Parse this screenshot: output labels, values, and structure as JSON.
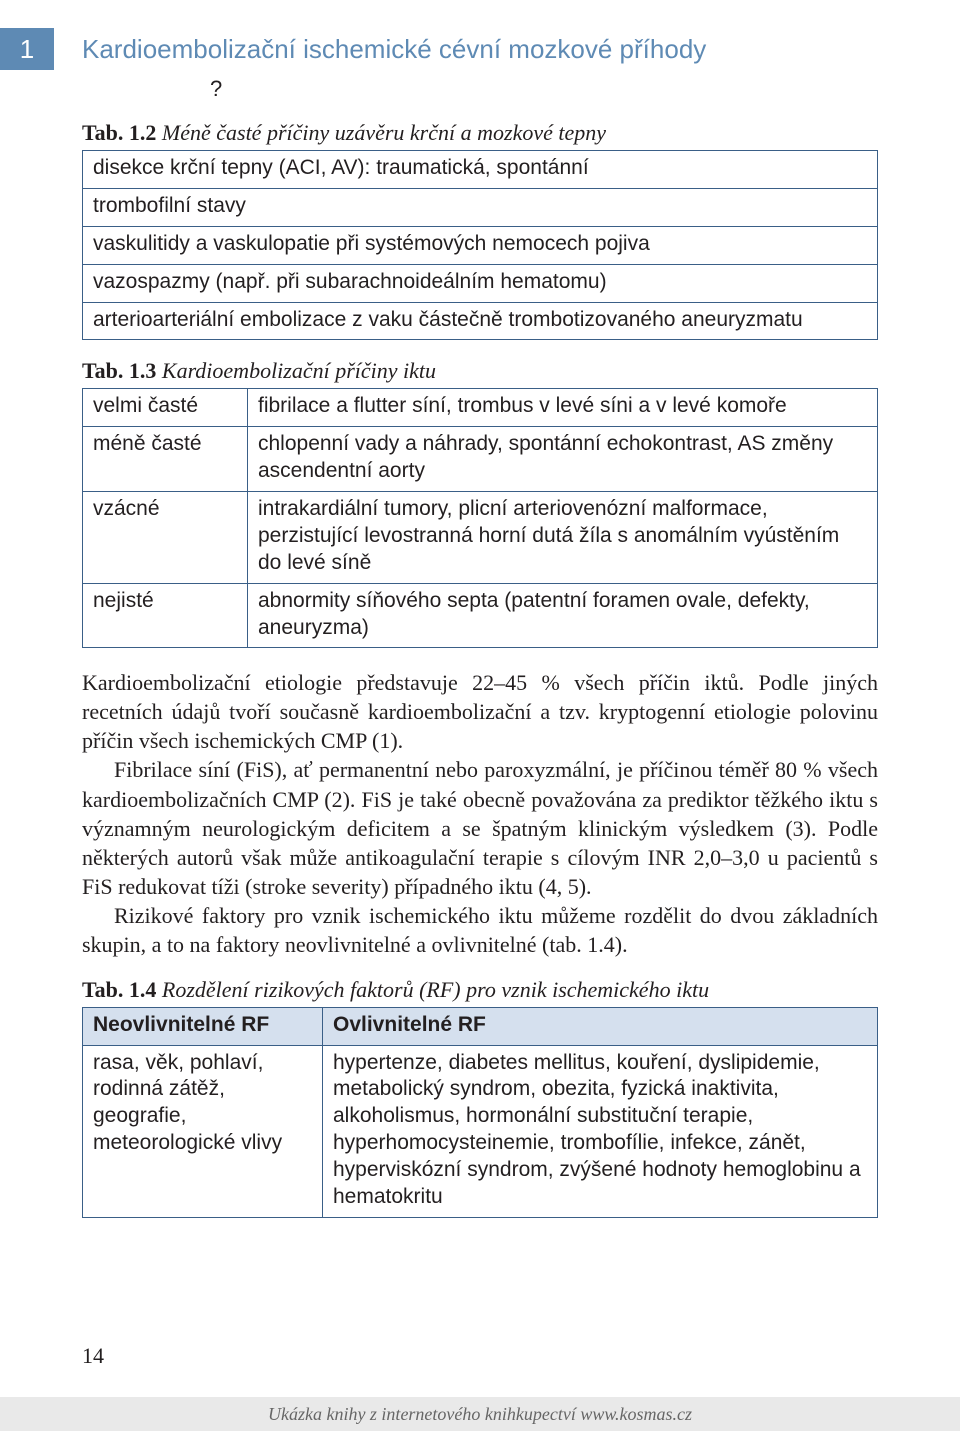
{
  "header": {
    "chapter_number": "1",
    "chapter_title": "Kardioembolizační ischemické cévní mozkové příhody",
    "qmark": "?"
  },
  "table12": {
    "caption_bold": "Tab. 1.2",
    "caption_italic": " Méně časté příčiny uzávěru krční a mozkové tepny",
    "rows": [
      "disekce krční tepny (ACI, AV): traumatická, spontánní",
      "trombofilní stavy",
      "vaskulitidy a vaskulopatie při systémových nemocech pojiva",
      "vazospazmy (např. při subarachnoideálním hematomu)",
      "arterioarteriální embolizace z vaku částečně trombotizovaného aneuryzmatu"
    ]
  },
  "table13": {
    "caption_bold": "Tab. 1.3",
    "caption_italic": " Kardioembolizační příčiny iktu",
    "rows": [
      {
        "left": "velmi časté",
        "right": "fibrilace a flutter síní, trombus v levé síni a v levé komoře"
      },
      {
        "left": "méně časté",
        "right": "chlopenní vady a náhrady, spontánní echokontrast, AS změny ascendentní aorty"
      },
      {
        "left": "vzácné",
        "right": "intrakardiální tumory, plicní arteriovenózní malformace, perzistující levostranná horní dutá žíla s anomálním vyústěním do levé síně"
      },
      {
        "left": "nejisté",
        "right": "abnormity síňového septa (patentní foramen ovale, defekty, aneuryzma)"
      }
    ]
  },
  "paragraphs": {
    "p1": "Kardioembolizační etiologie představuje 22–45 % všech příčin iktů. Podle jiných recetních údajů tvoří současně kardioembolizační a tzv. kryptogenní etiologie polovinu příčin všech ischemických CMP (1).",
    "p2": "Fibrilace síní (FiS), ať permanentní nebo paroxyzmální, je příčinou téměř 80 % všech kardioembolizačních CMP (2). FiS je také obecně považována za prediktor těžkého iktu s významným neurologickým deficitem a se špatným klinickým výsledkem (3). Podle některých autorů však může antikoagulační terapie s cílovým INR 2,0–3,0 u pacientů s FiS redukovat tíži (stroke severity) případného iktu (4, 5).",
    "p3": "Rizikové faktory pro vznik ischemického iktu můžeme rozdělit do dvou základních skupin, a to na faktory neovlivnitelné a ovlivnitelné (tab. 1.4)."
  },
  "table14": {
    "caption_bold": "Tab. 1.4",
    "caption_italic": " Rozdělení rizikových faktorů (RF) pro vznik ischemického iktu",
    "header_left": "Neovlivnitelné RF",
    "header_right": "Ovlivnitelné RF",
    "cell_left": "rasa, věk, pohlaví, rodinná zátěž, geografie, meteorologické vlivy",
    "cell_right": "hypertenze, diabetes mellitus, kouření, dyslipidemie, metabolický syndrom, obezita, fyzická inaktivita, alkoholismus, hormonální substituční terapie, hyperhomocysteinemie, trombofílie, infekce, zánět, hyperviskózní syndrom, zvýšené hodnoty hemoglobinu a hematokritu"
  },
  "page_number": "14",
  "footer_text": "Ukázka knihy z internetového knihkupectví www.kosmas.cz"
}
